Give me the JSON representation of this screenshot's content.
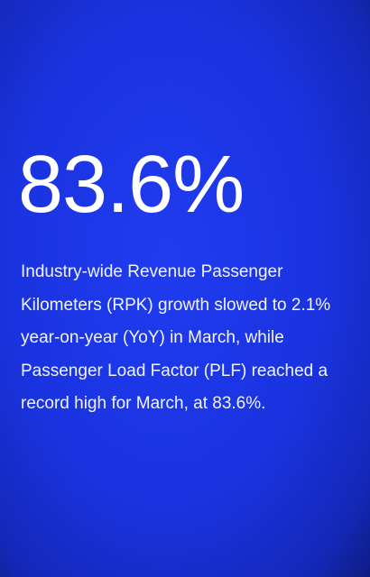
{
  "stat": "83.6%",
  "description": [
    "Industry-wide Revenue Passenger",
    "Kilometers (RPK) growth slowed to 2.1%",
    "year-on-year (YoY) in March, while",
    "Passenger Load Factor (PLF) reached a",
    "record high for March, at 83.6%."
  ]
}
